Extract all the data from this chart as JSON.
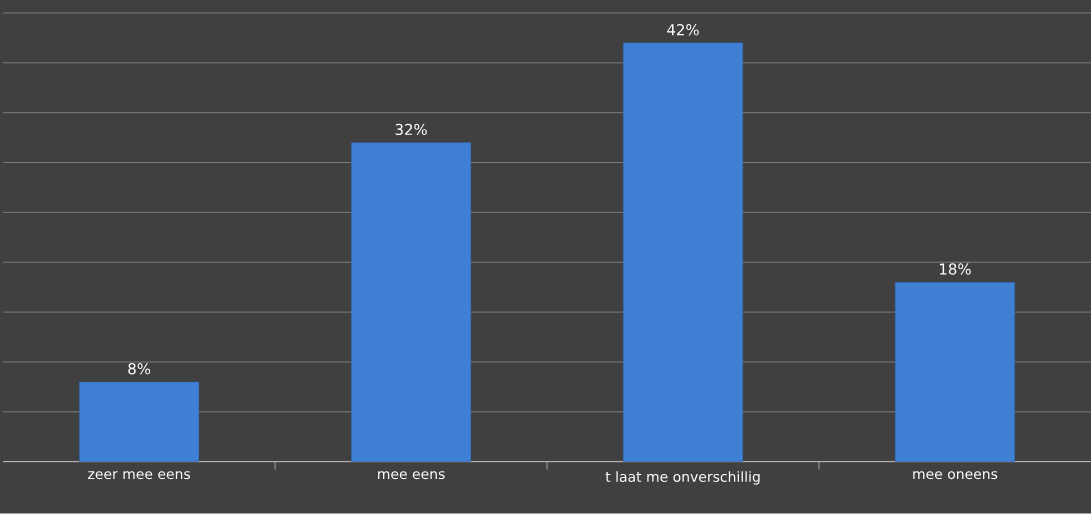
{
  "chart_data": {
    "type": "bar",
    "categories": [
      "zeer mee eens",
      "mee eens",
      "t laat me onverschillig",
      "mee oneens"
    ],
    "values": [
      8,
      32,
      42,
      18
    ],
    "value_labels": [
      "8%",
      "32%",
      "42%",
      "18%"
    ],
    "color": "#3f7fd4",
    "ylim": [
      0,
      45
    ],
    "yticks": [
      {
        "value": 0,
        "label": null
      },
      {
        "value": 5,
        "label": null
      },
      {
        "value": 10,
        "label": null
      },
      {
        "value": 15,
        "label": null
      },
      {
        "value": 20,
        "label": null
      },
      {
        "value": 25,
        "label": null
      },
      {
        "value": 30,
        "label": null
      },
      {
        "value": 35,
        "label": null
      },
      {
        "value": 40,
        "label": null
      },
      {
        "value": 45,
        "label": null
      }
    ],
    "grid": "y"
  }
}
